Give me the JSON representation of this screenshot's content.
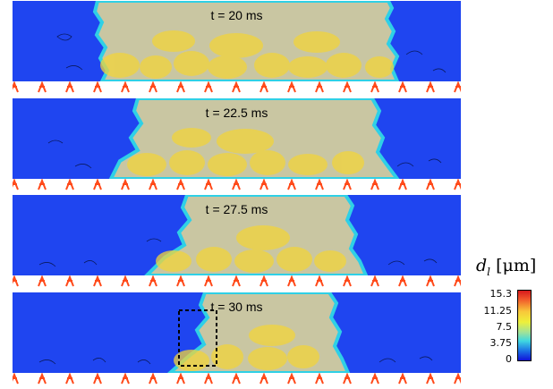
{
  "panels": [
    {
      "time_label": "t = 20 ms"
    },
    {
      "time_label": "t = 22.5 ms"
    },
    {
      "time_label": "t = 27.5 ms"
    },
    {
      "time_label": "t = 30 ms"
    }
  ],
  "colorbar": {
    "symbol": "d",
    "subscript": "l",
    "unit": "[μm]",
    "ticks": [
      "15.3",
      "11.25",
      "7.5",
      "3.75",
      "0"
    ],
    "colors": [
      "#d7191c",
      "#f8c83a",
      "#eef03a",
      "#3fd8e0",
      "#1010d8"
    ]
  },
  "colors": {
    "background_field": "#1f45f0",
    "spray_core": "#c9c98a",
    "spray_front": "#2fd0e6",
    "droplets": "#f2d43a",
    "injectors": "#ff4a1a"
  }
}
